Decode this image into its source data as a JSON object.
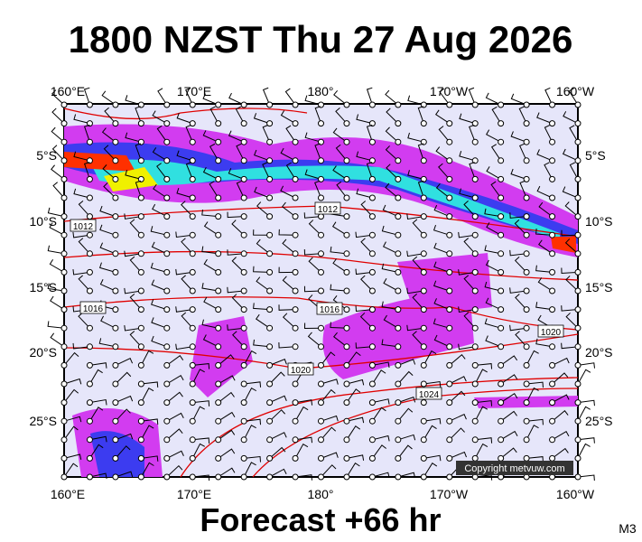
{
  "header": {
    "title": "1800 NZST Thu 27 Aug 2026"
  },
  "map": {
    "longitude_labels": [
      "160°E",
      "170°E",
      "180°",
      "170°W",
      "160°W"
    ],
    "latitude_labels": [
      "5°S",
      "10°S",
      "15°S",
      "20°S",
      "25°S"
    ],
    "isobar_labels": [
      "1012",
      "1012",
      "1016",
      "1016",
      "1020",
      "1020",
      "1024"
    ],
    "copyright": "Copyright metvuw.com"
  },
  "footer": {
    "forecast": "Forecast +66 hr",
    "code": "M3"
  }
}
